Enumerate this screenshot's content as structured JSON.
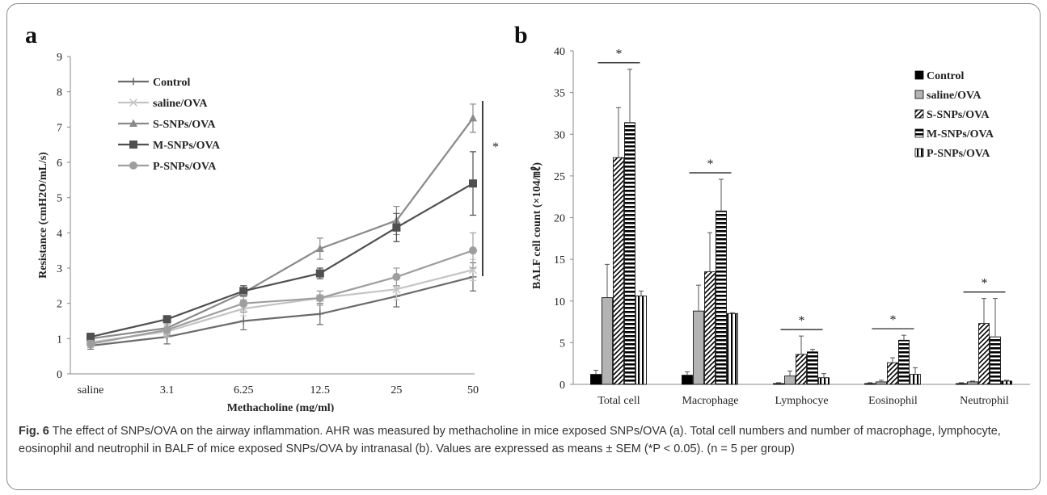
{
  "panel_a": {
    "label": "a",
    "legend": [
      "Control",
      "saline/OVA",
      "S-SNPs/OVA",
      "M-SNPs/OVA",
      "P-SNPs/OVA"
    ],
    "significance": "*"
  },
  "panel_b": {
    "label": "b",
    "legend": [
      "Control",
      "saline/OVA",
      "S-SNPs/OVA",
      "M-SNPs/OVA",
      "P-SNPs/OVA"
    ],
    "significance": "*"
  },
  "caption": {
    "fig": "Fig. 6",
    "text": "The effect of SNPs/OVA on the airway inflammation. AHR was measured by methacholine in mice exposed SNPs/OVA (a). Total cell numbers and number of macrophage, lymphocyte, eosinophil and neutrophil in BALF of mice exposed SNPs/OVA by intranasal (b). Values are expressed as means ± SEM (*P < 0.05). (n = 5 per group)"
  },
  "chart_data": [
    {
      "type": "line",
      "xlabel": "Methacholine  (mg/ml)",
      "ylabel": "Resistance (cmH2O/mL/s)",
      "ylim": [
        0,
        9
      ],
      "yticks": [
        "0",
        "1",
        "2",
        "3",
        "4",
        "5",
        "6",
        "7",
        "8",
        "9"
      ],
      "x": [
        "saline",
        "3.1",
        "6.25",
        "12.5",
        "25",
        "50"
      ],
      "series": [
        {
          "name": "Control",
          "color": "#6b6b6b",
          "marker": "plus",
          "values": [
            0.8,
            1.05,
            1.5,
            1.7,
            2.2,
            2.75
          ],
          "err": [
            0.1,
            0.2,
            0.25,
            0.3,
            0.3,
            0.4
          ]
        },
        {
          "name": "saline/OVA",
          "color": "#c4c4c4",
          "marker": "x",
          "values": [
            0.9,
            1.2,
            1.85,
            2.15,
            2.4,
            2.95
          ],
          "err": [
            0.1,
            0.15,
            0.2,
            0.2,
            0.3,
            0.3
          ]
        },
        {
          "name": "S-SNPs/OVA",
          "color": "#8a8a8a",
          "marker": "triangle",
          "values": [
            1.0,
            1.3,
            2.3,
            3.55,
            4.35,
            7.25
          ],
          "err": [
            0.1,
            0.15,
            0.2,
            0.3,
            0.4,
            0.4
          ]
        },
        {
          "name": "M-SNPs/OVA",
          "color": "#505050",
          "marker": "square",
          "values": [
            1.05,
            1.55,
            2.35,
            2.85,
            4.15,
            5.4
          ],
          "err": [
            0.1,
            0.1,
            0.15,
            0.15,
            0.4,
            0.9
          ]
        },
        {
          "name": "P-SNPs/OVA",
          "color": "#9e9e9e",
          "marker": "circle",
          "values": [
            0.85,
            1.25,
            2.0,
            2.15,
            2.75,
            3.5
          ],
          "err": [
            0.1,
            0.15,
            0.25,
            0.2,
            0.25,
            0.5
          ]
        }
      ]
    },
    {
      "type": "bar",
      "ylabel": "BALF cell count (×104/㎖)",
      "ylim": [
        0,
        40
      ],
      "yticks": [
        "0",
        "5",
        "10",
        "15",
        "20",
        "25",
        "30",
        "35",
        "40"
      ],
      "categories": [
        "Total cell",
        "Macrophage",
        "Lymphocye",
        "Eosinophil",
        "Neutrophil"
      ],
      "series": [
        {
          "name": "Control",
          "pattern": "black",
          "values": [
            1.2,
            1.1,
            0.1,
            0.1,
            0.1
          ],
          "err": [
            0.5,
            0.4,
            0.1,
            0.1,
            0.1
          ]
        },
        {
          "name": "saline/OVA",
          "pattern": "gray",
          "values": [
            10.4,
            8.8,
            1.0,
            0.3,
            0.3
          ],
          "err": [
            4.0,
            3.1,
            0.6,
            0.2,
            0.1
          ]
        },
        {
          "name": "S-SNPs/OVA",
          "pattern": "diag",
          "values": [
            27.2,
            13.5,
            3.6,
            2.6,
            7.3
          ],
          "err": [
            6.0,
            4.7,
            2.2,
            0.6,
            3.0
          ]
        },
        {
          "name": "M-SNPs/OVA",
          "pattern": "horiz",
          "values": [
            31.4,
            20.8,
            3.9,
            5.3,
            5.7
          ],
          "err": [
            6.4,
            3.8,
            0.3,
            0.6,
            4.6
          ]
        },
        {
          "name": "P-SNPs/OVA",
          "pattern": "vert",
          "values": [
            10.6,
            8.5,
            0.8,
            1.2,
            0.4
          ],
          "err": [
            0.6,
            0.1,
            0.5,
            0.8,
            0.1
          ]
        }
      ]
    }
  ]
}
